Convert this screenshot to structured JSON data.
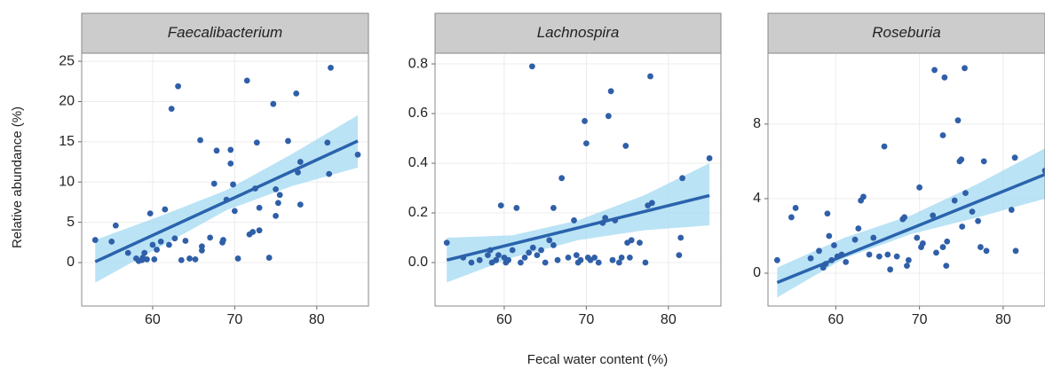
{
  "x_label": "Fecal water content (%)",
  "y_label": "Relative abundance (%)",
  "chart_data": [
    {
      "type": "scatter",
      "title": "Faecalibacterium",
      "xlim": [
        51.35,
        86.3
      ],
      "ylim": [
        -5.4,
        26
      ],
      "xticks": [
        60,
        70,
        80
      ],
      "yticks": [
        0,
        5,
        10,
        15,
        20,
        25
      ],
      "grid": true,
      "color": "#2f5fa8",
      "fit_color": "#2a63ad",
      "band_color": "#a9dcf3",
      "x": [
        53,
        55,
        55.5,
        57,
        58,
        58.3,
        58.7,
        59,
        59.3,
        59.7,
        60,
        60.2,
        60.5,
        61,
        61.5,
        62.3,
        62.7,
        63.1,
        63.5,
        64,
        64.5,
        65.2,
        65.8,
        66,
        67,
        67.8,
        68.5,
        68.6,
        69.5,
        69.5,
        69.8,
        70,
        70.4,
        71.5,
        71.8,
        72.2,
        72.7,
        73,
        73,
        74.2,
        74.7,
        75,
        75,
        75.3,
        75.5,
        76.5,
        77.5,
        77.7,
        78,
        78,
        81.3,
        81.5,
        81.7,
        85,
        67.5,
        72.5,
        62,
        66,
        58.8,
        69
      ],
      "values": [
        2.8,
        2.6,
        4.6,
        1.2,
        0.5,
        0.2,
        0.3,
        1.2,
        0.4,
        6.1,
        2.2,
        0.4,
        1.6,
        2.6,
        6.6,
        19.1,
        3.0,
        21.9,
        0.3,
        2.7,
        0.5,
        0.4,
        15.2,
        1.5,
        3.1,
        13.9,
        2.5,
        2.8,
        14.0,
        12.3,
        9.7,
        6.4,
        0.5,
        22.6,
        3.5,
        3.8,
        14.9,
        4.0,
        6.8,
        0.6,
        19.7,
        9.1,
        5.8,
        7.4,
        8.4,
        15.1,
        21.0,
        11.2,
        12.5,
        7.2,
        14.9,
        11.0,
        24.2,
        13.4,
        9.8,
        9.2,
        2.2,
        2.0,
        0.6,
        7.8
      ],
      "fit": {
        "x": [
          53,
          85
        ],
        "y": [
          0.1,
          15.1
        ]
      },
      "ci": {
        "x": [
          53,
          61,
          69,
          77,
          85
        ],
        "lower": [
          -2.5,
          2.0,
          6.5,
          9.5,
          11.8
        ],
        "upper": [
          2.8,
          5.8,
          9.0,
          13.5,
          18.3
        ]
      }
    },
    {
      "type": "scatter",
      "title": "Lachnospira",
      "xlim": [
        51.57,
        86.4
      ],
      "ylim": [
        -0.175,
        0.843
      ],
      "xticks": [
        60,
        70,
        80
      ],
      "yticks": [
        {
          "value": 0,
          "label": "0.0"
        },
        0.2,
        0.4,
        0.6,
        0.8
      ],
      "grid": true,
      "color": "#2f5fa8",
      "fit_color": "#2a63ad",
      "band_color": "#a9dcf3",
      "x": [
        53,
        55,
        56,
        57,
        58,
        58.3,
        58.5,
        59,
        59.3,
        59.6,
        60,
        60.2,
        61,
        61.5,
        62,
        62.5,
        63,
        63.4,
        63.5,
        64,
        64.5,
        65,
        65.5,
        66,
        66.5,
        67,
        67.8,
        68.5,
        68.8,
        69.3,
        69.8,
        70,
        70.2,
        70.5,
        71.5,
        72,
        72.3,
        72.7,
        73,
        73.2,
        73.5,
        74,
        74.3,
        74.8,
        75,
        75.3,
        75.5,
        76.5,
        77.2,
        77.5,
        77.8,
        78,
        81.3,
        81.5,
        81.7,
        85,
        60.5,
        66,
        71,
        69
      ],
      "values": [
        0.08,
        0.02,
        0.0,
        0.01,
        0.03,
        0.05,
        0.0,
        0.01,
        0.03,
        0.23,
        0.02,
        0.0,
        0.05,
        0.22,
        0.0,
        0.02,
        0.04,
        0.79,
        0.06,
        0.03,
        0.05,
        0.0,
        0.09,
        0.22,
        0.01,
        0.34,
        0.02,
        0.17,
        0.03,
        0.01,
        0.57,
        0.48,
        0.02,
        0.01,
        0.0,
        0.16,
        0.18,
        0.59,
        0.69,
        0.01,
        0.17,
        0.0,
        0.02,
        0.47,
        0.08,
        0.02,
        0.09,
        0.08,
        0.0,
        0.23,
        0.75,
        0.24,
        0.03,
        0.1,
        0.34,
        0.42,
        0.01,
        0.07,
        0.02,
        0.0
      ],
      "fit": {
        "x": [
          53,
          85
        ],
        "y": [
          0.01,
          0.27
        ]
      },
      "ci": {
        "x": [
          53,
          61,
          69,
          77,
          85
        ],
        "lower": [
          -0.08,
          0.02,
          0.09,
          0.13,
          0.15
        ],
        "upper": [
          0.1,
          0.11,
          0.17,
          0.27,
          0.4
        ]
      }
    },
    {
      "type": "scatter",
      "title": "Roseburia",
      "xlim": [
        51.9,
        85
      ],
      "ylim": [
        -1.76,
        11.8
      ],
      "xticks": [
        60,
        70,
        80
      ],
      "yticks": [
        0,
        4,
        8
      ],
      "grid": true,
      "color": "#2f5fa8",
      "fit_color": "#2a63ad",
      "band_color": "#a9dcf3",
      "x": [
        53,
        54.7,
        55.2,
        57,
        58,
        58.5,
        58.8,
        59,
        59.2,
        59.5,
        59.8,
        60.2,
        60.7,
        61.2,
        62.3,
        62.7,
        63,
        63.3,
        64,
        64.5,
        65.2,
        65.8,
        66.2,
        66.5,
        67.3,
        68,
        68.2,
        68.5,
        68.7,
        69.7,
        70,
        70.2,
        70.4,
        71.6,
        71.8,
        72,
        72.8,
        72.8,
        73,
        73.2,
        73.3,
        74.2,
        74.6,
        74.8,
        75,
        75.1,
        75.4,
        75.5,
        76.3,
        77,
        77.3,
        77.7,
        78,
        81,
        81.4,
        81.5,
        85
      ],
      "values": [
        0.7,
        3.0,
        3.5,
        0.8,
        1.2,
        0.3,
        0.5,
        3.2,
        2.0,
        0.7,
        1.5,
        0.9,
        1.0,
        0.6,
        1.8,
        2.4,
        3.9,
        4.1,
        1.0,
        1.9,
        0.9,
        6.8,
        1.0,
        0.2,
        0.9,
        2.9,
        3.0,
        0.4,
        0.7,
        1.9,
        4.6,
        1.4,
        1.6,
        3.1,
        10.9,
        1.1,
        1.4,
        7.4,
        10.5,
        0.4,
        1.7,
        3.9,
        8.2,
        6.0,
        6.1,
        2.5,
        11.0,
        4.3,
        3.3,
        2.8,
        1.4,
        6.0,
        1.2,
        3.4,
        6.2,
        1.2,
        5.5
      ],
      "fit": {
        "x": [
          53,
          85
        ],
        "y": [
          -0.5,
          5.3
        ]
      },
      "ci": {
        "x": [
          53,
          61,
          69,
          77,
          85
        ],
        "lower": [
          -1.3,
          0.8,
          2.1,
          3.0,
          4.0
        ],
        "upper": [
          0.3,
          1.9,
          3.1,
          4.8,
          6.7
        ]
      }
    }
  ]
}
